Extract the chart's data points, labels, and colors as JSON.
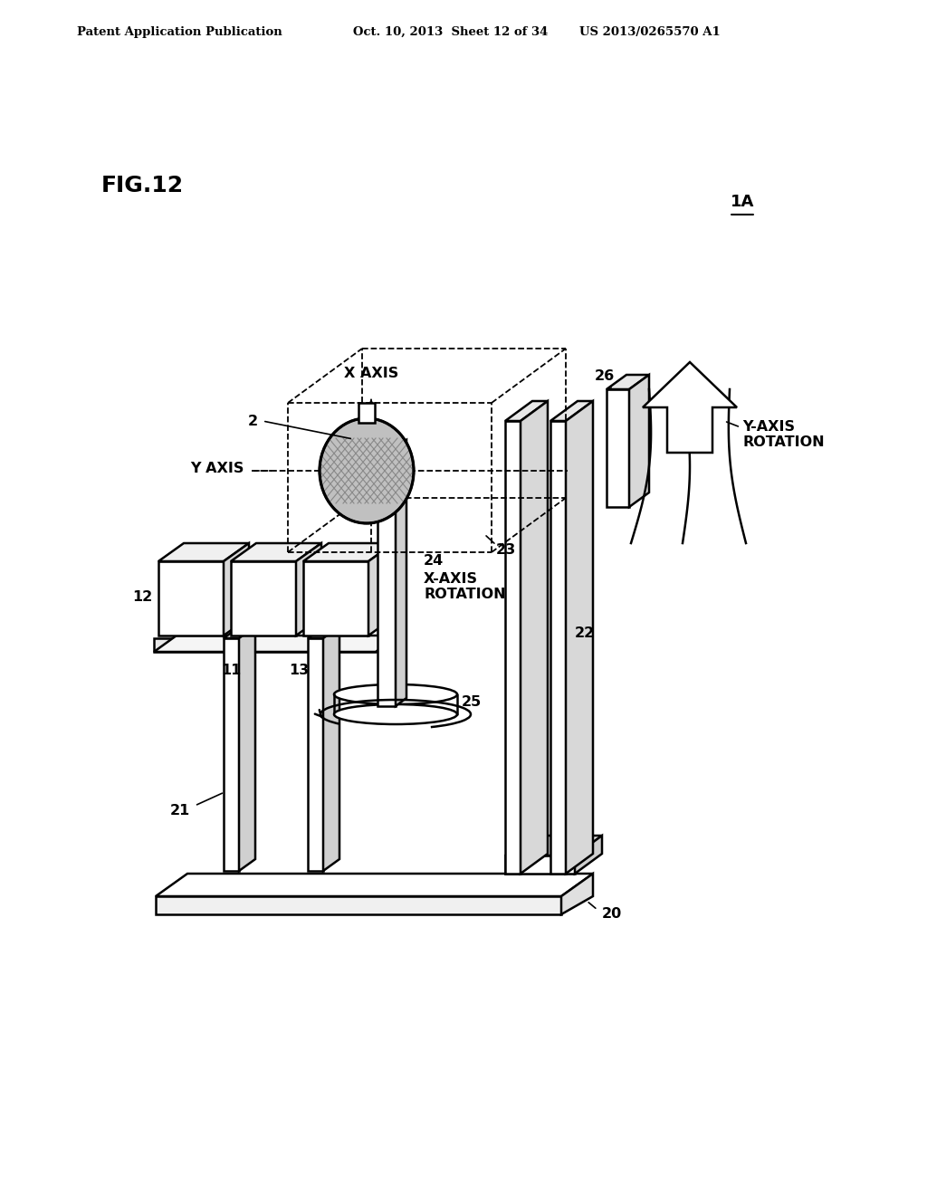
{
  "bg_color": "#ffffff",
  "line_color": "#000000",
  "header_left": "Patent Application Publication",
  "header_mid": "Oct. 10, 2013  Sheet 12 of 34",
  "header_right": "US 2013/0265570 A1",
  "fig_label": "FIG.12",
  "ref_label": "1A",
  "labels": {
    "x_axis": "X AXIS",
    "y_axis": "Y AXIS",
    "num_2": "2",
    "num_11": "11",
    "num_12": "12",
    "num_13": "13",
    "num_20": "20",
    "num_21": "21",
    "num_22": "22",
    "num_23": "23",
    "num_24": "24",
    "num_25": "25",
    "num_26": "26",
    "x_axis_rotation_num": "24",
    "x_axis_rotation": "X-AXIS\nROTATION",
    "y_axis_rotation": "Y-AXIS\nROTATION"
  }
}
